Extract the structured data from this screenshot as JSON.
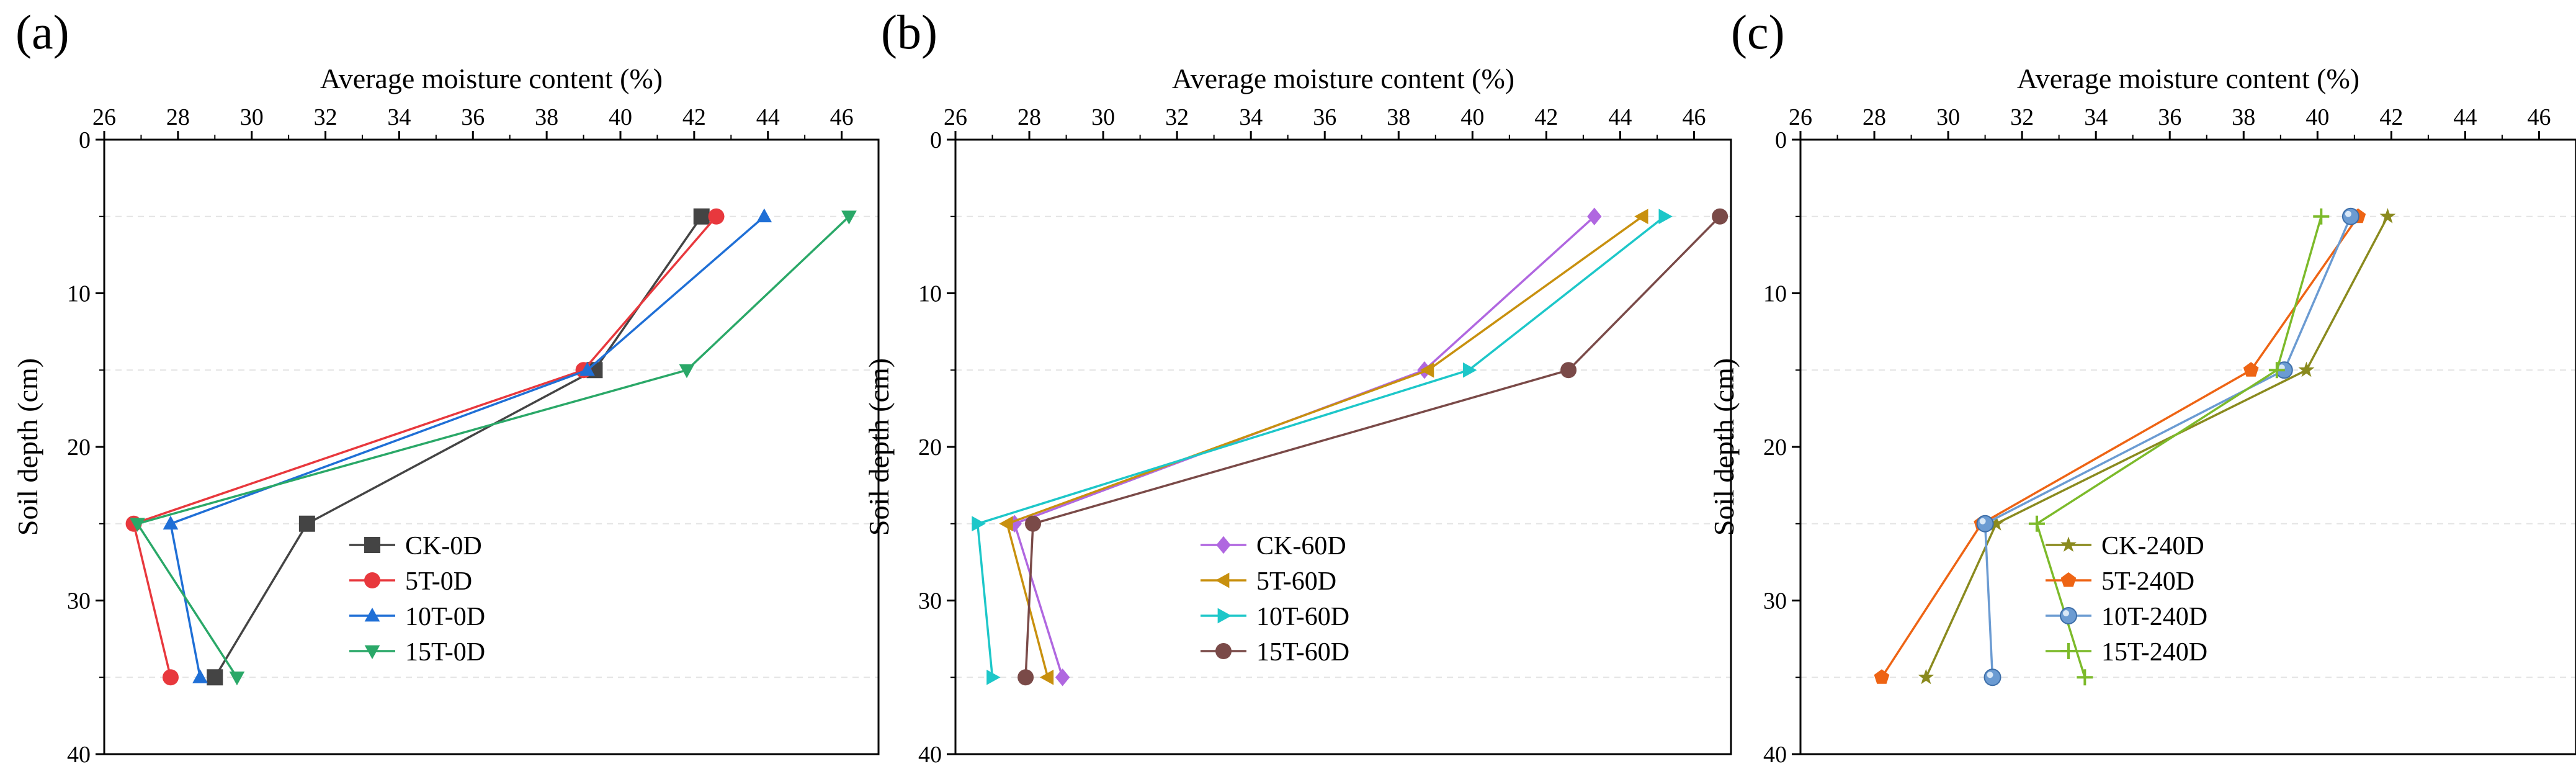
{
  "chart_data": [
    {
      "type": "line",
      "panel_label": "(a)",
      "xlabel": "Average moisture content (%)",
      "ylabel": "Soil depth (cm)",
      "xlim": [
        26,
        47
      ],
      "ylim": [
        0,
        40
      ],
      "x_ticks": [
        26,
        28,
        30,
        32,
        34,
        36,
        38,
        40,
        42,
        44,
        46
      ],
      "y_ticks": [
        0,
        10,
        20,
        30,
        40
      ],
      "x_axis_position": "top",
      "y_inverted": true,
      "legend_position": "bottom-right",
      "series": [
        {
          "name": "CK-0D",
          "color": "#444444",
          "marker": "square",
          "x": [
            42.2,
            39.3,
            31.5,
            29.0
          ],
          "y": [
            5,
            15,
            25,
            35
          ]
        },
        {
          "name": "5T-0D",
          "color": "#e8383d",
          "marker": "circle",
          "x": [
            42.6,
            39.0,
            26.8,
            27.8
          ],
          "y": [
            5,
            15,
            25,
            35
          ]
        },
        {
          "name": "10T-0D",
          "color": "#1f6fd6",
          "marker": "triangle-up",
          "x": [
            43.9,
            39.1,
            27.8,
            28.6
          ],
          "y": [
            5,
            15,
            25,
            35
          ]
        },
        {
          "name": "15T-0D",
          "color": "#2aa868",
          "marker": "triangle-down",
          "x": [
            46.2,
            41.8,
            26.9,
            29.6
          ],
          "y": [
            5,
            15,
            25,
            35
          ]
        }
      ]
    },
    {
      "type": "line",
      "panel_label": "(b)",
      "xlabel": "Average moisture content (%)",
      "ylabel": "Soil depth (cm)",
      "xlim": [
        26,
        47
      ],
      "ylim": [
        0,
        40
      ],
      "x_ticks": [
        26,
        28,
        30,
        32,
        34,
        36,
        38,
        40,
        42,
        44,
        46
      ],
      "y_ticks": [
        0,
        10,
        20,
        30,
        40
      ],
      "x_axis_position": "top",
      "y_inverted": true,
      "legend_position": "bottom-right",
      "series": [
        {
          "name": "CK-60D",
          "color": "#b067e0",
          "marker": "diamond",
          "x": [
            43.3,
            38.7,
            27.6,
            28.9
          ],
          "y": [
            5,
            15,
            25,
            35
          ]
        },
        {
          "name": "5T-60D",
          "color": "#c8900e",
          "marker": "triangle-left",
          "x": [
            44.6,
            38.8,
            27.4,
            28.5
          ],
          "y": [
            5,
            15,
            25,
            35
          ]
        },
        {
          "name": "10T-60D",
          "color": "#1dc7c9",
          "marker": "triangle-right",
          "x": [
            45.2,
            39.9,
            26.6,
            27.0
          ],
          "y": [
            5,
            15,
            25,
            35
          ]
        },
        {
          "name": "15T-60D",
          "color": "#7a4a48",
          "marker": "circle",
          "x": [
            46.7,
            42.6,
            28.1,
            27.9
          ],
          "y": [
            5,
            15,
            25,
            35
          ]
        }
      ]
    },
    {
      "type": "line",
      "panel_label": "(c)",
      "xlabel": "Average moisture content (%)",
      "ylabel": "Soil depth (cm)",
      "xlim": [
        26,
        47
      ],
      "ylim": [
        0,
        40
      ],
      "x_ticks": [
        26,
        28,
        30,
        32,
        34,
        36,
        38,
        40,
        42,
        44,
        46
      ],
      "y_ticks": [
        0,
        10,
        20,
        30,
        40
      ],
      "x_axis_position": "top",
      "y_inverted": true,
      "legend_position": "bottom-right",
      "series": [
        {
          "name": "CK-240D",
          "color": "#8a8a1e",
          "marker": "star",
          "x": [
            41.9,
            39.7,
            31.3,
            29.4
          ],
          "y": [
            5,
            15,
            25,
            35
          ]
        },
        {
          "name": "5T-240D",
          "color": "#ee6414",
          "marker": "pentagon",
          "x": [
            41.1,
            38.2,
            30.9,
            28.2
          ],
          "y": [
            5,
            15,
            25,
            35
          ]
        },
        {
          "name": "10T-240D",
          "color": "#6b9bd2",
          "marker": "circle-shaded",
          "x": [
            40.9,
            39.1,
            31.0,
            31.2
          ],
          "y": [
            5,
            15,
            25,
            35
          ]
        },
        {
          "name": "15T-240D",
          "color": "#7cba2a",
          "marker": "plus",
          "x": [
            40.1,
            38.9,
            32.4,
            33.7
          ],
          "y": [
            5,
            15,
            25,
            35
          ]
        }
      ]
    }
  ]
}
